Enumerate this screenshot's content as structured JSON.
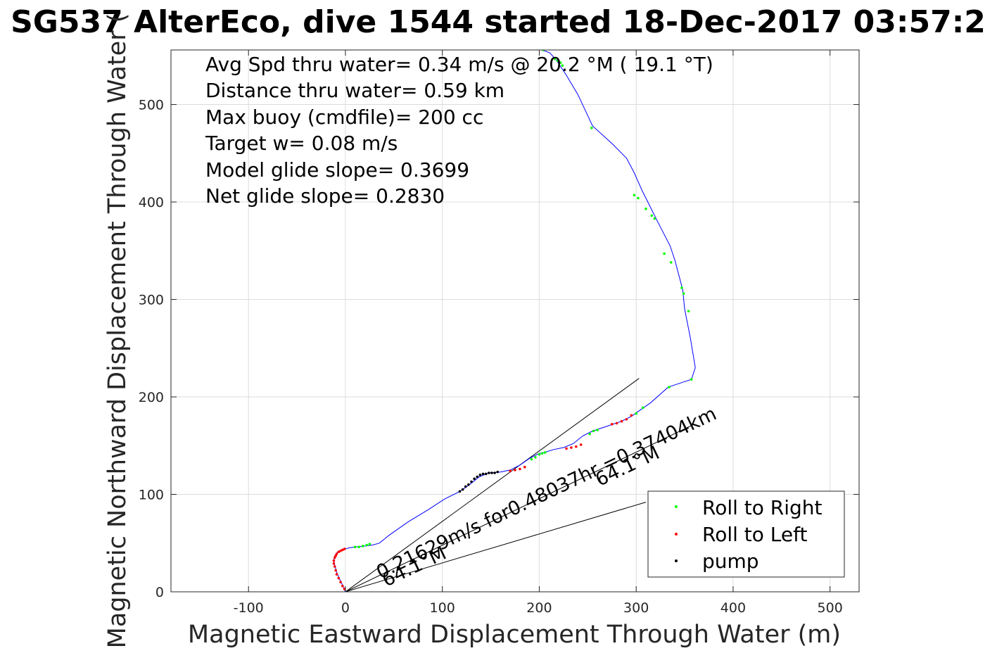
{
  "chart_data": {
    "type": "line",
    "title": "SG537 AlterEco, dive 1544 started 18-Dec-2017 03:57:2",
    "xlabel": "Magnetic Eastward Displacement Through Water (m)",
    "ylabel": "Magnetic Northward Displacement Through Water (",
    "xlim": [
      -180,
      530
    ],
    "ylim": [
      0,
      556
    ],
    "x_ticks": [
      -100,
      0,
      100,
      200,
      300,
      400,
      500
    ],
    "y_ticks": [
      0,
      100,
      200,
      300,
      400,
      500
    ],
    "x_tick_labels": [
      "-100",
      "0",
      "100",
      "200",
      "300",
      "400",
      "500"
    ],
    "y_tick_labels": [
      "0",
      "100",
      "200",
      "300",
      "400",
      "500"
    ],
    "grid": true,
    "legend_position": "bottom-right",
    "annotations": [
      "Avg Spd thru water=  0.34 m/s @  20.2 °M ( 19.1 °T)",
      "Distance thru water=  0.59 km",
      "Max buoy (cmdfile)= 200 cc",
      "Target w= 0.08 m/s",
      "Model glide slope= 0.3699",
      "Net glide slope= 0.2830"
    ],
    "track": {
      "name": "track",
      "color": "#0000ff",
      "x": [
        0,
        -3,
        -6,
        -9,
        -11,
        -12,
        -11,
        -9,
        -6,
        -2,
        0,
        3,
        10,
        20,
        28,
        35,
        45,
        65,
        85,
        102,
        118,
        128,
        138,
        148,
        160,
        170,
        180,
        190,
        200,
        205,
        215,
        225,
        235,
        245,
        255,
        270,
        285,
        295,
        302,
        315,
        333,
        348,
        357,
        361,
        356,
        350,
        348,
        340,
        335,
        322,
        312,
        306,
        298,
        290,
        275,
        255,
        240,
        228,
        218,
        211,
        203
      ],
      "y": [
        0,
        7,
        13,
        20,
        27,
        32,
        37,
        40,
        42,
        44,
        44,
        45,
        46,
        47,
        48,
        50,
        58,
        72,
        84,
        95,
        103,
        110,
        118,
        122,
        123,
        125,
        130,
        137,
        142,
        143,
        146,
        148,
        152,
        160,
        165,
        170,
        175,
        180,
        185,
        194,
        210,
        215,
        218,
        230,
        260,
        290,
        310,
        340,
        355,
        380,
        400,
        412,
        430,
        445,
        460,
        478,
        510,
        530,
        545,
        553,
        556
      ]
    },
    "series": [
      {
        "name": "Roll to Right",
        "color": "#00ff00",
        "x": [
          10,
          14,
          18,
          22,
          25,
          192,
          196,
          200,
          203,
          206,
          252,
          256,
          260,
          300,
          307,
          334,
          357,
          354,
          349,
          347,
          336,
          329,
          319,
          316,
          310,
          302,
          298,
          254,
          224,
          222,
          219,
          216,
          204
        ],
        "y": [
          46,
          46,
          47,
          48,
          49,
          136,
          138,
          141,
          142,
          143,
          162,
          165,
          166,
          183,
          189,
          210,
          218,
          288,
          306,
          312,
          338,
          347,
          383,
          386,
          393,
          404,
          407,
          476,
          540,
          543,
          545,
          547,
          556
        ]
      },
      {
        "name": "Roll to Left",
        "color": "#ff0000",
        "x": [
          -1,
          -3,
          -5,
          -7,
          -9,
          -10,
          -11,
          -12,
          -12,
          -11,
          -10,
          -9,
          -7,
          -5,
          -3,
          -1,
          170,
          175,
          180,
          185,
          228,
          233,
          238,
          243,
          275,
          280,
          285,
          290,
          295
        ],
        "y": [
          3,
          6,
          10,
          14,
          18,
          22,
          26,
          29,
          32,
          35,
          37,
          39,
          41,
          42,
          43,
          44,
          124,
          125,
          126,
          128,
          147,
          148,
          149,
          151,
          172,
          173,
          175,
          177,
          181
        ]
      },
      {
        "name": "pump",
        "color": "#000000",
        "x": [
          118,
          121,
          124,
          127,
          130,
          133,
          136,
          139,
          142,
          145,
          148,
          151,
          154,
          157
        ],
        "y": [
          103,
          105,
          108,
          110,
          113,
          116,
          118,
          120,
          121,
          121,
          122,
          122,
          122,
          123
        ]
      }
    ],
    "reference_lines": [
      {
        "x": [
          0,
          303
        ],
        "y": [
          0,
          219
        ]
      },
      {
        "x": [
          0,
          360
        ],
        "y": [
          0,
          172
        ]
      },
      {
        "x": [
          0,
          310
        ],
        "y": [
          0,
          92
        ]
      }
    ],
    "diagonal_labels": [
      {
        "text": "0.21629m/s for0.48037hr =0.37404km",
        "x": 36,
        "y": 13,
        "angle": -25.5
      },
      {
        "text": "64.1°M",
        "x": 42,
        "y": 5,
        "angle": -25.5
      },
      {
        "text": "64.1°M",
        "x": 262,
        "y": 108,
        "angle": -25.5
      }
    ]
  }
}
